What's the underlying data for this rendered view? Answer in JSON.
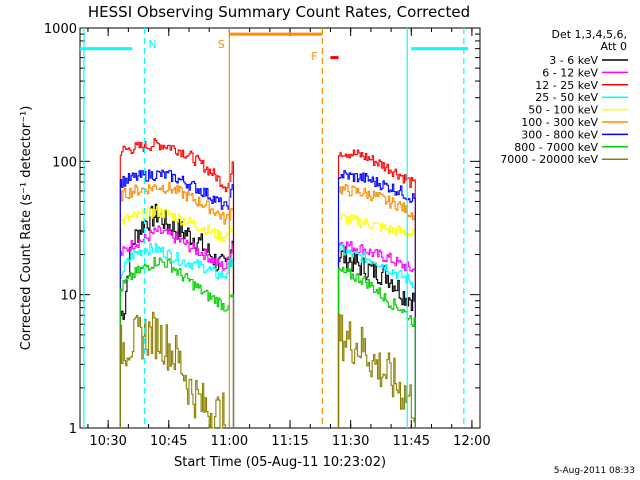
{
  "chart_data": {
    "type": "line",
    "title": "HESSI Observing Summary Count Rates, Corrected",
    "xlabel": "Start Time (05-Aug-11 10:23:02)",
    "ylabel": "Corrected Count Rate (s⁻¹ detector⁻¹)",
    "ylim": [
      1,
      1000
    ],
    "yscale": "log",
    "xlim": [
      "10:23:02",
      "12:02:00"
    ],
    "x_ticks": [
      "10:30",
      "10:45",
      "11:00",
      "11:15",
      "11:30",
      "11:45",
      "12:00"
    ],
    "y_ticks": [
      "1",
      "10",
      "100",
      "1000"
    ],
    "legend": {
      "header": [
        "Det 1,3,4,5,6,",
        "Att 0"
      ],
      "position": "right"
    },
    "series": [
      {
        "name": "3 - 6 keV",
        "color": "#000000",
        "segments": [
          [
            [
              "10:33",
              7
            ],
            [
              "10:34",
              8
            ],
            [
              "10:36",
              25
            ],
            [
              "10:39",
              35
            ],
            [
              "10:42",
              40
            ],
            [
              "10:45",
              33
            ],
            [
              "10:48",
              30
            ],
            [
              "10:51",
              27
            ],
            [
              "10:54",
              22
            ],
            [
              "10:57",
              17
            ],
            [
              "10:59",
              16
            ],
            [
              "11:00",
              20
            ],
            [
              "11:01",
              30
            ]
          ],
          [
            [
              "11:27",
              20
            ],
            [
              "11:30",
              18
            ],
            [
              "11:33",
              16
            ],
            [
              "11:36",
              15
            ],
            [
              "11:39",
              14
            ],
            [
              "11:41",
              12
            ],
            [
              "11:43",
              10
            ],
            [
              "11:46",
              9
            ]
          ]
        ]
      },
      {
        "name": "6 - 12 keV",
        "color": "#ff00ff",
        "segments": [
          [
            [
              "10:33",
              20
            ],
            [
              "10:36",
              24
            ],
            [
              "10:39",
              26
            ],
            [
              "10:42",
              30
            ],
            [
              "10:45",
              28
            ],
            [
              "10:48",
              25
            ],
            [
              "10:51",
              22
            ],
            [
              "10:54",
              20
            ],
            [
              "10:57",
              17
            ],
            [
              "10:59",
              16
            ],
            [
              "11:00",
              20
            ],
            [
              "11:01",
              26
            ]
          ],
          [
            [
              "11:27",
              25
            ],
            [
              "11:30",
              23
            ],
            [
              "11:33",
              22
            ],
            [
              "11:36",
              20
            ],
            [
              "11:39",
              19
            ],
            [
              "11:42",
              17
            ],
            [
              "11:44",
              16
            ],
            [
              "11:46",
              15
            ]
          ]
        ]
      },
      {
        "name": "12 - 25 keV",
        "color": "#ff0000",
        "segments": [
          [
            [
              "10:33",
              120
            ],
            [
              "10:36",
              125
            ],
            [
              "10:39",
              130
            ],
            [
              "10:42",
              135
            ],
            [
              "10:45",
              130
            ],
            [
              "10:48",
              120
            ],
            [
              "10:51",
              105
            ],
            [
              "10:54",
              90
            ],
            [
              "10:57",
              75
            ],
            [
              "10:59",
              65
            ],
            [
              "11:00",
              70
            ],
            [
              "11:01",
              100
            ]
          ],
          [
            [
              "11:27",
              120
            ],
            [
              "11:30",
              115
            ],
            [
              "11:33",
              110
            ],
            [
              "11:36",
              100
            ],
            [
              "11:39",
              90
            ],
            [
              "11:42",
              80
            ],
            [
              "11:44",
              72
            ],
            [
              "11:46",
              65
            ]
          ]
        ]
      },
      {
        "name": "25 - 50 keV",
        "color": "#00ffff",
        "segments": [
          [
            [
              "10:33",
              14
            ],
            [
              "10:36",
              20
            ],
            [
              "10:39",
              22
            ],
            [
              "10:42",
              22
            ],
            [
              "10:45",
              20
            ],
            [
              "10:48",
              18
            ],
            [
              "10:51",
              17
            ],
            [
              "10:54",
              16
            ],
            [
              "10:57",
              14
            ],
            [
              "10:59",
              14
            ],
            [
              "11:00",
              17
            ],
            [
              "11:01",
              20
            ]
          ],
          [
            [
              "11:27",
              22
            ],
            [
              "11:30",
              20
            ],
            [
              "11:33",
              19
            ],
            [
              "11:36",
              18
            ],
            [
              "11:39",
              16
            ],
            [
              "11:42",
              14
            ],
            [
              "11:44",
              13
            ],
            [
              "11:46",
              12
            ]
          ]
        ]
      },
      {
        "name": "50 - 100 keV",
        "color": "#ffff00",
        "segments": [
          [
            [
              "10:33",
              35
            ],
            [
              "10:36",
              38
            ],
            [
              "10:39",
              40
            ],
            [
              "10:42",
              42
            ],
            [
              "10:45",
              40
            ],
            [
              "10:48",
              37
            ],
            [
              "10:51",
              34
            ],
            [
              "10:54",
              31
            ],
            [
              "10:57",
              28
            ],
            [
              "10:59",
              27
            ],
            [
              "11:00",
              30
            ],
            [
              "11:01",
              35
            ]
          ],
          [
            [
              "11:27",
              38
            ],
            [
              "11:30",
              36
            ],
            [
              "11:33",
              35
            ],
            [
              "11:36",
              33
            ],
            [
              "11:39",
              31
            ],
            [
              "11:42",
              30
            ],
            [
              "11:44",
              29
            ],
            [
              "11:46",
              28
            ]
          ]
        ]
      },
      {
        "name": "100 - 300 keV",
        "color": "#ff8c00",
        "segments": [
          [
            [
              "10:33",
              55
            ],
            [
              "10:36",
              60
            ],
            [
              "10:39",
              62
            ],
            [
              "10:42",
              65
            ],
            [
              "10:45",
              63
            ],
            [
              "10:48",
              58
            ],
            [
              "10:51",
              52
            ],
            [
              "10:54",
              47
            ],
            [
              "10:57",
              41
            ],
            [
              "10:59",
              36
            ],
            [
              "11:00",
              40
            ],
            [
              "11:01",
              50
            ]
          ],
          [
            [
              "11:27",
              62
            ],
            [
              "11:30",
              60
            ],
            [
              "11:33",
              58
            ],
            [
              "11:36",
              55
            ],
            [
              "11:39",
              50
            ],
            [
              "11:42",
              47
            ],
            [
              "11:44",
              42
            ],
            [
              "11:46",
              40
            ]
          ]
        ]
      },
      {
        "name": "300 - 800 keV",
        "color": "#0000ff",
        "segments": [
          [
            [
              "10:33",
              70
            ],
            [
              "10:36",
              75
            ],
            [
              "10:39",
              78
            ],
            [
              "10:42",
              80
            ],
            [
              "10:45",
              78
            ],
            [
              "10:48",
              72
            ],
            [
              "10:51",
              65
            ],
            [
              "10:54",
              58
            ],
            [
              "10:57",
              50
            ],
            [
              "10:59",
              45
            ],
            [
              "11:00",
              50
            ],
            [
              "11:01",
              70
            ]
          ],
          [
            [
              "11:27",
              80
            ],
            [
              "11:30",
              77
            ],
            [
              "11:33",
              75
            ],
            [
              "11:36",
              70
            ],
            [
              "11:39",
              65
            ],
            [
              "11:42",
              60
            ],
            [
              "11:44",
              55
            ],
            [
              "11:46",
              52
            ]
          ]
        ]
      },
      {
        "name": "800 - 7000 keV",
        "color": "#00d000",
        "segments": [
          [
            [
              "10:33",
              11
            ],
            [
              "10:36",
              14
            ],
            [
              "10:39",
              16
            ],
            [
              "10:42",
              18
            ],
            [
              "10:45",
              17
            ],
            [
              "10:48",
              14
            ],
            [
              "10:51",
              12
            ],
            [
              "10:54",
              10
            ],
            [
              "10:57",
              9
            ],
            [
              "10:59",
              8
            ],
            [
              "11:00",
              9
            ],
            [
              "11:01",
              10
            ]
          ],
          [
            [
              "11:27",
              15
            ],
            [
              "11:30",
              14
            ],
            [
              "11:33",
              13
            ],
            [
              "11:36",
              11
            ],
            [
              "11:39",
              9
            ],
            [
              "11:42",
              8
            ],
            [
              "11:44",
              7
            ],
            [
              "11:46",
              6
            ]
          ]
        ]
      },
      {
        "name": "7000 - 20000 keV",
        "color": "#8b8000",
        "segments": [
          [
            [
              "10:33",
              4
            ],
            [
              "10:36",
              4.5
            ],
            [
              "10:39",
              5
            ],
            [
              "10:42",
              5
            ],
            [
              "10:45",
              4
            ],
            [
              "10:48",
              3
            ],
            [
              "10:50",
              2
            ],
            [
              "10:53",
              1.5
            ],
            [
              "10:56",
              1.3
            ],
            [
              "10:59",
              1.2
            ]
          ],
          [
            [
              "11:27",
              5
            ],
            [
              "11:30",
              4.5
            ],
            [
              "11:33",
              4
            ],
            [
              "11:36",
              3
            ],
            [
              "11:39",
              2.5
            ],
            [
              "11:42",
              2
            ],
            [
              "11:44",
              1.7
            ],
            [
              "11:46",
              1.5
            ]
          ]
        ]
      }
    ],
    "markers": [
      {
        "label": "N",
        "color": "#00ffff",
        "style": "dashed",
        "x": "10:39"
      },
      {
        "label": "S",
        "color": "#ff8c00",
        "style": "solid",
        "x": "11:00"
      },
      {
        "label": "F",
        "color": "#ff8c00",
        "style": "dashed",
        "x": "11:23"
      },
      {
        "label": "",
        "color": "#00ffff",
        "style": "solid",
        "x": "10:24"
      },
      {
        "label": "",
        "color": "#00ffff",
        "style": "solid",
        "x": "11:44"
      },
      {
        "label": "",
        "color": "#00ffff",
        "style": "dashed",
        "x": "11:58"
      }
    ],
    "bars": [
      {
        "name": "night-left",
        "color": "#00ffff",
        "x1": "10:23",
        "x2": "10:36",
        "y": 700
      },
      {
        "name": "saa",
        "color": "#ff8c00",
        "x1": "11:00",
        "x2": "11:23",
        "y": 900
      },
      {
        "name": "flare",
        "color": "#ff0000",
        "x1": "11:25",
        "x2": "11:27",
        "y": 600
      },
      {
        "name": "night-right",
        "color": "#00ffff",
        "x1": "11:45",
        "x2": "11:59",
        "y": 700
      }
    ]
  },
  "footer": {
    "timestamp": "5-Aug-2011 08:33"
  }
}
